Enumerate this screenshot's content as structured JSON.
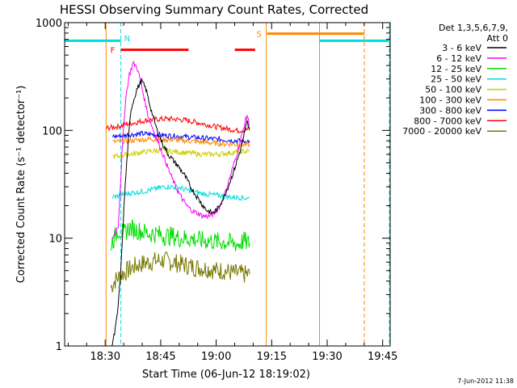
{
  "chart_data": {
    "type": "line",
    "title": "HESSI Observing Summary Count Rates, Corrected",
    "xlabel": "Start Time (06-Jun-12 18:19:02)",
    "ylabel": "Corrected Count Rate (s⁻¹ detector⁻¹)",
    "y_scale": "log",
    "ylim": [
      1,
      1000
    ],
    "xlim_minutes": [
      0,
      88
    ],
    "x_tick_labels": [
      "18:30",
      "18:45",
      "19:00",
      "19:15",
      "19:30",
      "19:45"
    ],
    "x_tick_minutes": [
      10.97,
      25.97,
      40.97,
      55.97,
      70.97,
      85.97
    ],
    "y_tick_labels": [
      "1",
      "10",
      "100",
      "1000"
    ],
    "y_tick_values": [
      1,
      10,
      100,
      1000
    ],
    "legend_header": [
      "Det 1,3,5,6,7,9,",
      "Att 0"
    ],
    "legend_position": "top-right",
    "series": [
      {
        "name": "3 - 6 keV",
        "color": "#000000",
        "points": [
          [
            12.8,
            1.0
          ],
          [
            13.5,
            1.3
          ],
          [
            14.3,
            2.0
          ],
          [
            15.2,
            5
          ],
          [
            16.2,
            25
          ],
          [
            17.2,
            80
          ],
          [
            18.0,
            160
          ],
          [
            19.5,
            240
          ],
          [
            20.8,
            290
          ],
          [
            22.0,
            240
          ],
          [
            23.5,
            150
          ],
          [
            25.0,
            100
          ],
          [
            26.5,
            75
          ],
          [
            28.0,
            60
          ],
          [
            29.5,
            52
          ],
          [
            31.0,
            45
          ],
          [
            32.5,
            38
          ],
          [
            34.0,
            30
          ],
          [
            35.5,
            25
          ],
          [
            37.0,
            21
          ],
          [
            38.5,
            18
          ],
          [
            40.0,
            17
          ],
          [
            41.5,
            19
          ],
          [
            43.0,
            24
          ],
          [
            44.5,
            32
          ],
          [
            46.0,
            45
          ],
          [
            47.5,
            65
          ],
          [
            48.5,
            90
          ],
          [
            49.3,
            120
          ],
          [
            50.0,
            100
          ]
        ]
      },
      {
        "name": "6 - 12 keV",
        "color": "#ff00ff",
        "points": [
          [
            13.0,
            10
          ],
          [
            14.5,
            13
          ],
          [
            15.5,
            60
          ],
          [
            16.5,
            200
          ],
          [
            17.5,
            330
          ],
          [
            18.5,
            420
          ],
          [
            19.5,
            390
          ],
          [
            20.5,
            290
          ],
          [
            21.5,
            200
          ],
          [
            22.5,
            140
          ],
          [
            24.0,
            100
          ],
          [
            25.5,
            75
          ],
          [
            27.0,
            55
          ],
          [
            28.5,
            40
          ],
          [
            30.0,
            30
          ],
          [
            31.5,
            24
          ],
          [
            33.0,
            20
          ],
          [
            34.5,
            18
          ],
          [
            36.0,
            17
          ],
          [
            37.5,
            16
          ],
          [
            39.0,
            16
          ],
          [
            40.5,
            17
          ],
          [
            42.0,
            20
          ],
          [
            43.5,
            27
          ],
          [
            45.0,
            40
          ],
          [
            46.5,
            60
          ],
          [
            47.5,
            80
          ],
          [
            48.5,
            110
          ],
          [
            49.3,
            140
          ],
          [
            50.0,
            110
          ]
        ]
      },
      {
        "name": "12 - 25 keV",
        "color": "#00dd00",
        "points": [
          [
            12.5,
            9
          ],
          [
            13.5,
            10
          ],
          [
            14.5,
            12
          ],
          [
            16.0,
            11
          ],
          [
            17.5,
            12.5
          ],
          [
            19.0,
            12
          ],
          [
            21.0,
            11.5
          ],
          [
            23.0,
            11
          ],
          [
            25.0,
            11
          ],
          [
            27.0,
            10.5
          ],
          [
            29.0,
            10.5
          ],
          [
            31.0,
            10
          ],
          [
            33.0,
            10
          ],
          [
            35.0,
            9.8
          ],
          [
            37.0,
            9.5
          ],
          [
            39.0,
            9.5
          ],
          [
            41.0,
            9.3
          ],
          [
            43.0,
            9.2
          ],
          [
            45.0,
            9.0
          ],
          [
            47.0,
            8.8
          ],
          [
            48.5,
            9.5
          ],
          [
            49.5,
            9.0
          ],
          [
            50.0,
            9.0
          ]
        ]
      },
      {
        "name": "25 - 50 keV",
        "color": "#00dddd",
        "points": [
          [
            13.0,
            24
          ],
          [
            15.0,
            25
          ],
          [
            17.0,
            26
          ],
          [
            19.0,
            26.5
          ],
          [
            21.0,
            27
          ],
          [
            23.0,
            28
          ],
          [
            25.0,
            29
          ],
          [
            27.0,
            30
          ],
          [
            29.0,
            30
          ],
          [
            31.0,
            29.5
          ],
          [
            33.0,
            28
          ],
          [
            35.0,
            27
          ],
          [
            37.0,
            26
          ],
          [
            39.0,
            25.5
          ],
          [
            41.0,
            25
          ],
          [
            43.0,
            24.5
          ],
          [
            45.0,
            24
          ],
          [
            47.0,
            24
          ],
          [
            49.0,
            23.5
          ],
          [
            50.0,
            23.5
          ]
        ]
      },
      {
        "name": "50 - 100 keV",
        "color": "#cccc00",
        "points": [
          [
            13.0,
            57
          ],
          [
            15.0,
            58
          ],
          [
            17.0,
            60
          ],
          [
            19.0,
            61
          ],
          [
            21.0,
            63
          ],
          [
            23.0,
            64
          ],
          [
            25.0,
            65
          ],
          [
            27.0,
            65
          ],
          [
            29.0,
            64
          ],
          [
            31.0,
            63
          ],
          [
            33.0,
            62
          ],
          [
            35.0,
            61
          ],
          [
            37.0,
            60
          ],
          [
            39.0,
            60
          ],
          [
            41.0,
            60
          ],
          [
            43.0,
            61
          ],
          [
            45.0,
            62
          ],
          [
            47.0,
            63
          ],
          [
            49.0,
            64
          ],
          [
            50.0,
            64
          ]
        ]
      },
      {
        "name": "100 - 300 keV",
        "color": "#ff8800",
        "points": [
          [
            13.0,
            78
          ],
          [
            15.0,
            79
          ],
          [
            17.0,
            80
          ],
          [
            19.0,
            81
          ],
          [
            21.0,
            82
          ],
          [
            23.0,
            83
          ],
          [
            25.0,
            83
          ],
          [
            27.0,
            82
          ],
          [
            29.0,
            82
          ],
          [
            31.0,
            81
          ],
          [
            33.0,
            80
          ],
          [
            35.0,
            79
          ],
          [
            37.0,
            78
          ],
          [
            39.0,
            77
          ],
          [
            41.0,
            76
          ],
          [
            43.0,
            75
          ],
          [
            45.0,
            75
          ],
          [
            47.0,
            74
          ],
          [
            49.0,
            74
          ],
          [
            50.0,
            74
          ]
        ]
      },
      {
        "name": "300 - 800 keV",
        "color": "#0000ff",
        "points": [
          [
            13.0,
            88
          ],
          [
            15.0,
            89
          ],
          [
            17.0,
            91
          ],
          [
            19.0,
            92
          ],
          [
            21.0,
            93
          ],
          [
            23.0,
            92
          ],
          [
            25.0,
            91
          ],
          [
            27.0,
            90
          ],
          [
            29.0,
            89
          ],
          [
            31.0,
            88
          ],
          [
            33.0,
            87
          ],
          [
            35.0,
            86
          ],
          [
            37.0,
            85
          ],
          [
            39.0,
            84
          ],
          [
            41.0,
            83
          ],
          [
            43.0,
            82
          ],
          [
            45.0,
            81
          ],
          [
            47.0,
            80
          ],
          [
            49.0,
            79
          ],
          [
            50.0,
            80
          ]
        ]
      },
      {
        "name": "800 - 7000 keV",
        "color": "#ff0000",
        "points": [
          [
            11.2,
            105
          ],
          [
            13.0,
            107
          ],
          [
            15.0,
            110
          ],
          [
            17.0,
            115
          ],
          [
            19.0,
            118
          ],
          [
            21.0,
            122
          ],
          [
            23.0,
            125
          ],
          [
            25.0,
            127
          ],
          [
            27.0,
            128
          ],
          [
            29.0,
            128
          ],
          [
            31.0,
            126
          ],
          [
            33.0,
            124
          ],
          [
            35.0,
            120
          ],
          [
            37.0,
            116
          ],
          [
            39.0,
            112
          ],
          [
            41.0,
            108
          ],
          [
            43.0,
            105
          ],
          [
            45.0,
            102
          ],
          [
            47.0,
            100
          ],
          [
            49.0,
            101
          ],
          [
            50.0,
            103
          ]
        ]
      },
      {
        "name": "7000 - 20000 keV",
        "color": "#777700",
        "points": [
          [
            12.5,
            3.5
          ],
          [
            13.5,
            4.0
          ],
          [
            15.0,
            4.5
          ],
          [
            17.0,
            5.0
          ],
          [
            19.0,
            5.5
          ],
          [
            21.0,
            5.8
          ],
          [
            23.0,
            6.0
          ],
          [
            25.0,
            6.2
          ],
          [
            27.0,
            6.2
          ],
          [
            29.0,
            6.0
          ],
          [
            31.0,
            5.8
          ],
          [
            33.0,
            5.6
          ],
          [
            35.0,
            5.4
          ],
          [
            37.0,
            5.3
          ],
          [
            39.0,
            5.2
          ],
          [
            41.0,
            5.0
          ],
          [
            43.0,
            5.0
          ],
          [
            45.0,
            4.8
          ],
          [
            47.0,
            4.7
          ],
          [
            49.0,
            4.6
          ],
          [
            50.0,
            4.6
          ]
        ]
      }
    ],
    "attenuator_segments": [
      {
        "color": "#00dddd",
        "y": 680,
        "x": [
          0.0,
          15.2
        ]
      },
      {
        "color": "#00dddd",
        "y": 680,
        "x": [
          68.9,
          87.8
        ]
      }
    ],
    "flag_segments": [
      {
        "label": "F",
        "color": "#ff0000",
        "y": 560,
        "x": [
          15.2,
          33.5
        ]
      },
      {
        "label": "",
        "color": "#ff0000",
        "y": 560,
        "x": [
          46.0,
          51.5
        ]
      },
      {
        "label": "S",
        "color": "#ff8800",
        "y": 790,
        "x": [
          54.7,
          81.0
        ]
      }
    ],
    "markers": [
      {
        "label": "N",
        "color": "#00dddd",
        "x": 15.2,
        "style": "dashed"
      },
      {
        "color": "#ff8800",
        "x": 11.2,
        "style": "solid"
      },
      {
        "color": "#ff8800",
        "x": 54.5,
        "style": "solid"
      },
      {
        "color": "#ff8800",
        "x": 81.0,
        "style": "dashed"
      },
      {
        "color": "#00dddd",
        "x": 68.9,
        "style": "solid"
      },
      {
        "color": "#00dddd",
        "x": 87.8,
        "style": "dashed"
      }
    ]
  },
  "footer": {
    "date_stamp": "7-Jun-2012 11:38"
  }
}
